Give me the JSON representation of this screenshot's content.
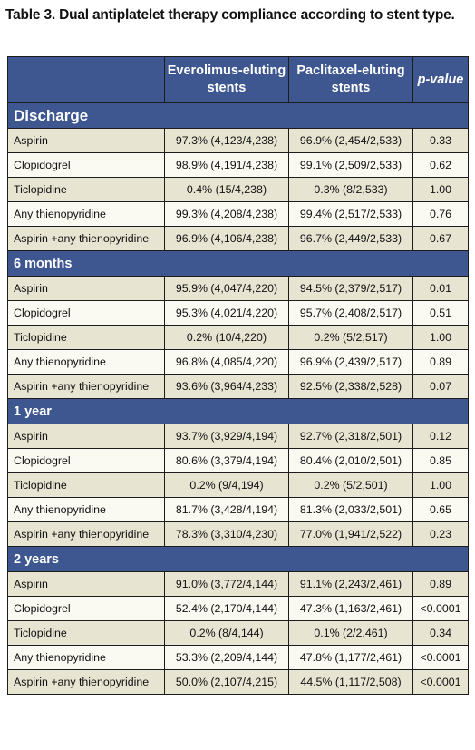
{
  "caption": "Table 3. Dual antiplatelet therapy compliance according to stent type.",
  "header": {
    "col1": "",
    "col2": "Everolimus-eluting stents",
    "col3": "Paclitaxel-eluting stents",
    "col4": "p-value"
  },
  "sections": [
    {
      "title": "Discharge",
      "rows": [
        {
          "label": "Aspirin",
          "eve": "97.3% (4,123/4,238)",
          "pac": "96.9% (2,454/2,533)",
          "p": "0.33"
        },
        {
          "label": "Clopidogrel",
          "eve": "98.9% (4,191/4,238)",
          "pac": "99.1% (2,509/2,533)",
          "p": "0.62"
        },
        {
          "label": "Ticlopidine",
          "eve": "0.4% (15/4,238)",
          "pac": "0.3% (8/2,533)",
          "p": "1.00"
        },
        {
          "label": "Any thienopyridine",
          "eve": "99.3% (4,208/4,238)",
          "pac": "99.4% (2,517/2,533)",
          "p": "0.76"
        },
        {
          "label": "Aspirin +any thienopyridine",
          "eve": "96.9% (4,106/4,238)",
          "pac": "96.7% (2,449/2,533)",
          "p": "0.67"
        }
      ]
    },
    {
      "title": "6 months",
      "rows": [
        {
          "label": "Aspirin",
          "eve": "95.9% (4,047/4,220)",
          "pac": "94.5% (2,379/2,517)",
          "p": "0.01"
        },
        {
          "label": "Clopidogrel",
          "eve": "95.3% (4,021/4,220)",
          "pac": "95.7% (2,408/2,517)",
          "p": "0.51"
        },
        {
          "label": "Ticlopidine",
          "eve": "0.2% (10/4,220)",
          "pac": "0.2% (5/2,517)",
          "p": "1.00"
        },
        {
          "label": "Any thienopyridine",
          "eve": "96.8% (4,085/4,220)",
          "pac": "96.9% (2,439/2,517)",
          "p": "0.89"
        },
        {
          "label": "Aspirin +any thienopyridine",
          "eve": "93.6% (3,964/4,233)",
          "pac": "92.5% (2,338/2,528)",
          "p": "0.07"
        }
      ]
    },
    {
      "title": "1 year",
      "rows": [
        {
          "label": "Aspirin",
          "eve": "93.7% (3,929/4,194)",
          "pac": "92.7% (2,318/2,501)",
          "p": "0.12"
        },
        {
          "label": "Clopidogrel",
          "eve": "80.6% (3,379/4,194)",
          "pac": "80.4% (2,010/2,501)",
          "p": "0.85"
        },
        {
          "label": "Ticlopidine",
          "eve": "0.2% (9/4,194)",
          "pac": "0.2% (5/2,501)",
          "p": "1.00"
        },
        {
          "label": "Any thienopyridine",
          "eve": "81.7% (3,428/4,194)",
          "pac": "81.3% (2,033/2,501)",
          "p": "0.65"
        },
        {
          "label": "Aspirin +any thienopyridine",
          "eve": "78.3% (3,310/4,230)",
          "pac": "77.0% (1,941/2,522)",
          "p": "0.23"
        }
      ]
    },
    {
      "title": "2 years",
      "rows": [
        {
          "label": "Aspirin",
          "eve": "91.0% (3,772/4,144)",
          "pac": "91.1% (2,243/2,461)",
          "p": "0.89"
        },
        {
          "label": "Clopidogrel",
          "eve": "52.4% (2,170/4,144)",
          "pac": "47.3% (1,163/2,461)",
          "p": "<0.0001"
        },
        {
          "label": "Ticlopidine",
          "eve": "0.2% (8/4,144)",
          "pac": "0.1% (2/2,461)",
          "p": "0.34"
        },
        {
          "label": "Any thienopyridine",
          "eve": "53.3% (2,209/4,144)",
          "pac": "47.8% (1,177/2,461)",
          "p": "<0.0001"
        },
        {
          "label": "Aspirin +any thienopyridine",
          "eve": "50.0% (2,107/4,215)",
          "pac": "44.5% (1,117/2,508)",
          "p": "<0.0001"
        }
      ]
    }
  ]
}
